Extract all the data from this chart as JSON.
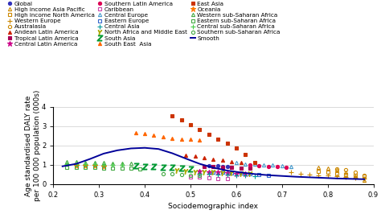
{
  "xlabel": "Sociodemographic index",
  "ylabel": "Age standardised DALY rate\nper 100 000 population (000s)",
  "xlim": [
    0.2,
    0.9
  ],
  "ylim": [
    0,
    4
  ],
  "yticks": [
    0,
    1,
    2,
    3,
    4
  ],
  "xticks": [
    0.2,
    0.3,
    0.4,
    0.5,
    0.6,
    0.7,
    0.8,
    0.9
  ],
  "series": [
    {
      "name": "Global",
      "color": "#3333bb",
      "marker": "o",
      "filled": true,
      "markersize": 3,
      "x": [
        0.54,
        0.56,
        0.57,
        0.58
      ],
      "y": [
        0.95,
        0.93,
        0.91,
        0.89
      ]
    },
    {
      "name": "High income Asia Pacific",
      "color": "#cc8800",
      "marker": "^",
      "filled": false,
      "markersize": 3,
      "x": [
        0.78,
        0.8,
        0.82,
        0.84,
        0.86,
        0.88
      ],
      "y": [
        0.88,
        0.82,
        0.75,
        0.6,
        0.4,
        0.18
      ]
    },
    {
      "name": "High income North America",
      "color": "#cc8800",
      "marker": "s",
      "filled": false,
      "markersize": 3,
      "x": [
        0.78,
        0.8,
        0.82,
        0.84,
        0.86,
        0.88
      ],
      "y": [
        0.65,
        0.62,
        0.55,
        0.5,
        0.44,
        0.42
      ]
    },
    {
      "name": "Western Europe",
      "color": "#cc8800",
      "marker": "+",
      "filled": true,
      "markersize": 4,
      "x": [
        0.72,
        0.74,
        0.76,
        0.78,
        0.8,
        0.82,
        0.84,
        0.86,
        0.88
      ],
      "y": [
        0.62,
        0.55,
        0.5,
        0.47,
        0.43,
        0.4,
        0.37,
        0.33,
        0.3
      ]
    },
    {
      "name": "Australasia",
      "color": "#cc8800",
      "marker": "o",
      "filled": false,
      "markersize": 3,
      "x": [
        0.82,
        0.84,
        0.86,
        0.88
      ],
      "y": [
        0.78,
        0.73,
        0.6,
        0.45
      ]
    },
    {
      "name": "Andean Latin America",
      "color": "#cc2200",
      "marker": "^",
      "filled": true,
      "markersize": 3,
      "x": [
        0.49,
        0.51,
        0.53,
        0.55,
        0.57,
        0.59,
        0.61
      ],
      "y": [
        1.5,
        1.45,
        1.35,
        1.3,
        1.25,
        1.18,
        1.1
      ]
    },
    {
      "name": "Tropical Latin America",
      "color": "#aa0055",
      "marker": "s",
      "filled": true,
      "markersize": 3,
      "x": [
        0.53,
        0.55,
        0.57,
        0.59,
        0.61,
        0.63
      ],
      "y": [
        0.92,
        0.9,
        0.88,
        0.86,
        0.84,
        0.82
      ]
    },
    {
      "name": "Central Latin America",
      "color": "#cc0088",
      "marker": "*",
      "filled": true,
      "markersize": 5,
      "x": [
        0.52,
        0.54,
        0.56,
        0.58,
        0.6,
        0.62
      ],
      "y": [
        0.65,
        0.62,
        0.6,
        0.58,
        0.55,
        0.52
      ]
    },
    {
      "name": "Southern Latin America",
      "color": "#dd0055",
      "marker": "o",
      "filled": true,
      "markersize": 3,
      "x": [
        0.63,
        0.65,
        0.67,
        0.69,
        0.71
      ],
      "y": [
        0.98,
        0.95,
        0.92,
        0.9,
        0.87
      ]
    },
    {
      "name": "Caribbean",
      "color": "#cc44aa",
      "marker": "s",
      "filled": false,
      "markersize": 3,
      "x": [
        0.5,
        0.52,
        0.54,
        0.56,
        0.58
      ],
      "y": [
        0.38,
        0.35,
        0.33,
        0.3,
        0.28
      ]
    },
    {
      "name": "Central Europe",
      "color": "#4499cc",
      "marker": "^",
      "filled": false,
      "markersize": 3,
      "x": [
        0.6,
        0.62,
        0.64,
        0.66,
        0.68,
        0.7,
        0.72
      ],
      "y": [
        1.1,
        1.05,
        1.02,
        1.0,
        0.98,
        0.95,
        0.92
      ]
    },
    {
      "name": "Eastern Europe",
      "color": "#3366cc",
      "marker": "s",
      "filled": false,
      "markersize": 3,
      "x": [
        0.55,
        0.57,
        0.59,
        0.61,
        0.63,
        0.65,
        0.67
      ],
      "y": [
        0.62,
        0.6,
        0.58,
        0.56,
        0.52,
        0.48,
        0.45
      ]
    },
    {
      "name": "Central Asia",
      "color": "#009999",
      "marker": "+",
      "filled": true,
      "markersize": 4,
      "x": [
        0.52,
        0.54,
        0.56,
        0.58,
        0.6,
        0.62,
        0.64
      ],
      "y": [
        0.55,
        0.52,
        0.5,
        0.48,
        0.46,
        0.44,
        0.42
      ]
    },
    {
      "name": "North Africa and Middle East",
      "color": "#aaaa00",
      "marker": "$Y$",
      "filled": true,
      "markersize": 4,
      "x": [
        0.47,
        0.49,
        0.51,
        0.53,
        0.55,
        0.57,
        0.59,
        0.61,
        0.63
      ],
      "y": [
        0.68,
        0.65,
        0.63,
        0.61,
        0.6,
        0.58,
        0.56,
        0.54,
        0.52
      ]
    },
    {
      "name": "South Asia",
      "color": "#009933",
      "marker": "$Z$",
      "filled": true,
      "markersize": 5,
      "x": [
        0.38,
        0.4,
        0.42,
        0.44,
        0.46,
        0.48,
        0.5
      ],
      "y": [
        0.93,
        0.91,
        0.89,
        0.87,
        0.85,
        0.83,
        0.8
      ]
    },
    {
      "name": "South East  Asia",
      "color": "#ff6600",
      "marker": "^",
      "filled": true,
      "markersize": 3,
      "x": [
        0.38,
        0.4,
        0.42,
        0.44,
        0.46,
        0.48,
        0.5,
        0.52
      ],
      "y": [
        2.65,
        2.63,
        2.55,
        2.45,
        2.38,
        2.35,
        2.32,
        2.3
      ]
    },
    {
      "name": "East Asia",
      "color": "#cc3300",
      "marker": "s",
      "filled": true,
      "markersize": 3,
      "x": [
        0.46,
        0.48,
        0.5,
        0.52,
        0.54,
        0.56,
        0.58,
        0.6,
        0.62,
        0.64
      ],
      "y": [
        3.55,
        3.35,
        3.1,
        2.85,
        2.6,
        2.35,
        2.1,
        1.85,
        1.55,
        1.1
      ]
    },
    {
      "name": "Oceania",
      "color": "#ff7700",
      "marker": "*",
      "filled": true,
      "markersize": 5,
      "x": [
        0.25,
        0.27,
        0.29,
        0.31
      ],
      "y": [
        0.97,
        0.95,
        0.93,
        0.91
      ]
    },
    {
      "name": "Western sub-Saharan Africa",
      "color": "#44aa44",
      "marker": "^",
      "filled": false,
      "markersize": 3,
      "x": [
        0.23,
        0.25,
        0.27,
        0.29,
        0.31,
        0.33,
        0.35,
        0.37
      ],
      "y": [
        1.15,
        1.14,
        1.12,
        1.11,
        1.1,
        1.09,
        1.08,
        1.07
      ]
    },
    {
      "name": "Eastern sub-Saharan Africa",
      "color": "#44aa44",
      "marker": "s",
      "filled": false,
      "markersize": 3,
      "x": [
        0.23,
        0.25,
        0.27,
        0.29,
        0.31,
        0.33,
        0.35,
        0.37,
        0.39
      ],
      "y": [
        0.88,
        0.87,
        0.86,
        0.85,
        0.84,
        0.83,
        0.82,
        0.81,
        0.8
      ]
    },
    {
      "name": "Central sub-Saharan Africa",
      "color": "#44cc44",
      "marker": "+",
      "filled": true,
      "markersize": 4,
      "x": [
        0.23,
        0.25,
        0.27,
        0.29,
        0.31,
        0.33,
        0.35
      ],
      "y": [
        1.05,
        1.04,
        1.03,
        1.02,
        1.01,
        1.0,
        0.99
      ]
    },
    {
      "name": "Southern sub-Saharan Africa",
      "color": "#44aa44",
      "marker": "o",
      "filled": false,
      "markersize": 3,
      "x": [
        0.44,
        0.46,
        0.48,
        0.5,
        0.52
      ],
      "y": [
        0.55,
        0.53,
        0.5,
        0.47,
        0.44
      ]
    },
    {
      "name": "Smooth",
      "color": "#000099",
      "marker": "none",
      "filled": false,
      "markersize": 0,
      "x": [],
      "y": []
    }
  ],
  "smooth_x": [
    0.22,
    0.25,
    0.28,
    0.31,
    0.34,
    0.37,
    0.4,
    0.43,
    0.46,
    0.49,
    0.52,
    0.55,
    0.58,
    0.61,
    0.64,
    0.67,
    0.7,
    0.73,
    0.76,
    0.79,
    0.82,
    0.85,
    0.88
  ],
  "smooth_y": [
    0.92,
    1.05,
    1.3,
    1.58,
    1.75,
    1.85,
    1.88,
    1.82,
    1.6,
    1.32,
    1.05,
    0.85,
    0.7,
    0.6,
    0.52,
    0.46,
    0.42,
    0.38,
    0.35,
    0.32,
    0.29,
    0.27,
    0.25
  ],
  "smooth_color": "#000099",
  "legend_fontsize": 5.2,
  "axis_fontsize": 6.5,
  "tick_fontsize": 6.0
}
